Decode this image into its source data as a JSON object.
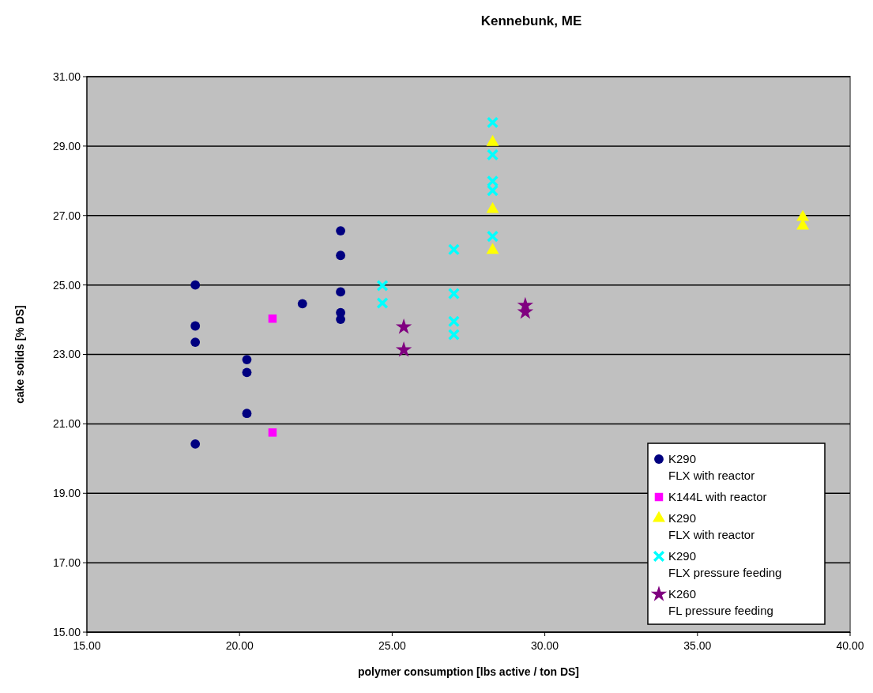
{
  "chart_data": {
    "type": "scatter",
    "title": "Kennebunk, ME",
    "xlabel": "polymer consumption [lbs active / ton DS]",
    "ylabel": "cake solids [% DS]",
    "xlim": [
      15,
      40
    ],
    "xticks": [
      {
        "value": 15,
        "label": "15.00"
      },
      {
        "value": 20,
        "label": "20.00"
      },
      {
        "value": 25,
        "label": "25.00"
      },
      {
        "value": 30,
        "label": "30.00"
      },
      {
        "value": 35,
        "label": "35.00"
      },
      {
        "value": 40,
        "label": "40.00"
      }
    ],
    "ylim": [
      15,
      31
    ],
    "yticks": [
      {
        "value": 15,
        "label": "15.00"
      },
      {
        "value": 17,
        "label": "17.00"
      },
      {
        "value": 19,
        "label": "19.00"
      },
      {
        "value": 21,
        "label": "21.00"
      },
      {
        "value": 23,
        "label": "23.00"
      },
      {
        "value": 25,
        "label": "25.00"
      },
      {
        "value": 27,
        "label": "27.00"
      },
      {
        "value": 29,
        "label": "29.00"
      },
      {
        "value": 31,
        "label": "31.00"
      }
    ],
    "grid": "y",
    "legend": "bottom right",
    "series": [
      {
        "name": "K290\nFLX with reactor",
        "color": "#000080",
        "marker": "circle",
        "x": [
          18.55,
          18.55,
          18.55,
          18.55,
          20.24,
          20.24,
          20.24,
          22.06,
          23.31,
          23.31,
          23.31,
          23.31,
          23.31
        ],
        "values": [
          25.0,
          23.82,
          23.35,
          20.42,
          22.85,
          22.48,
          21.3,
          24.46,
          26.56,
          25.85,
          24.8,
          24.2,
          24.01
        ]
      },
      {
        "name": "K144L with reactor",
        "color": "#ff00ff",
        "marker": "square",
        "x": [
          21.08,
          21.08
        ],
        "values": [
          24.03,
          20.75
        ]
      },
      {
        "name": "K290\nFLX with reactor",
        "color": "#ffff00",
        "marker": "triangle",
        "x": [
          28.29,
          28.29,
          28.29,
          38.45,
          38.45
        ],
        "values": [
          29.11,
          27.18,
          26.0,
          26.95,
          26.7
        ]
      },
      {
        "name": "K290\nFLX pressure feeding",
        "color": "#00ffff",
        "marker": "cross",
        "x": [
          24.68,
          24.68,
          27.02,
          27.02,
          27.02,
          27.02,
          28.29,
          28.29,
          28.29,
          28.29,
          28.29
        ],
        "values": [
          24.98,
          24.48,
          26.02,
          24.75,
          23.95,
          23.57,
          29.68,
          28.75,
          27.99,
          27.72,
          26.4
        ]
      },
      {
        "name": "K260\nFL pressure feeding",
        "color": "#800080",
        "marker": "star",
        "x": [
          25.38,
          25.38,
          29.36,
          29.36
        ],
        "values": [
          23.79,
          23.13,
          24.41,
          24.22
        ]
      }
    ]
  }
}
